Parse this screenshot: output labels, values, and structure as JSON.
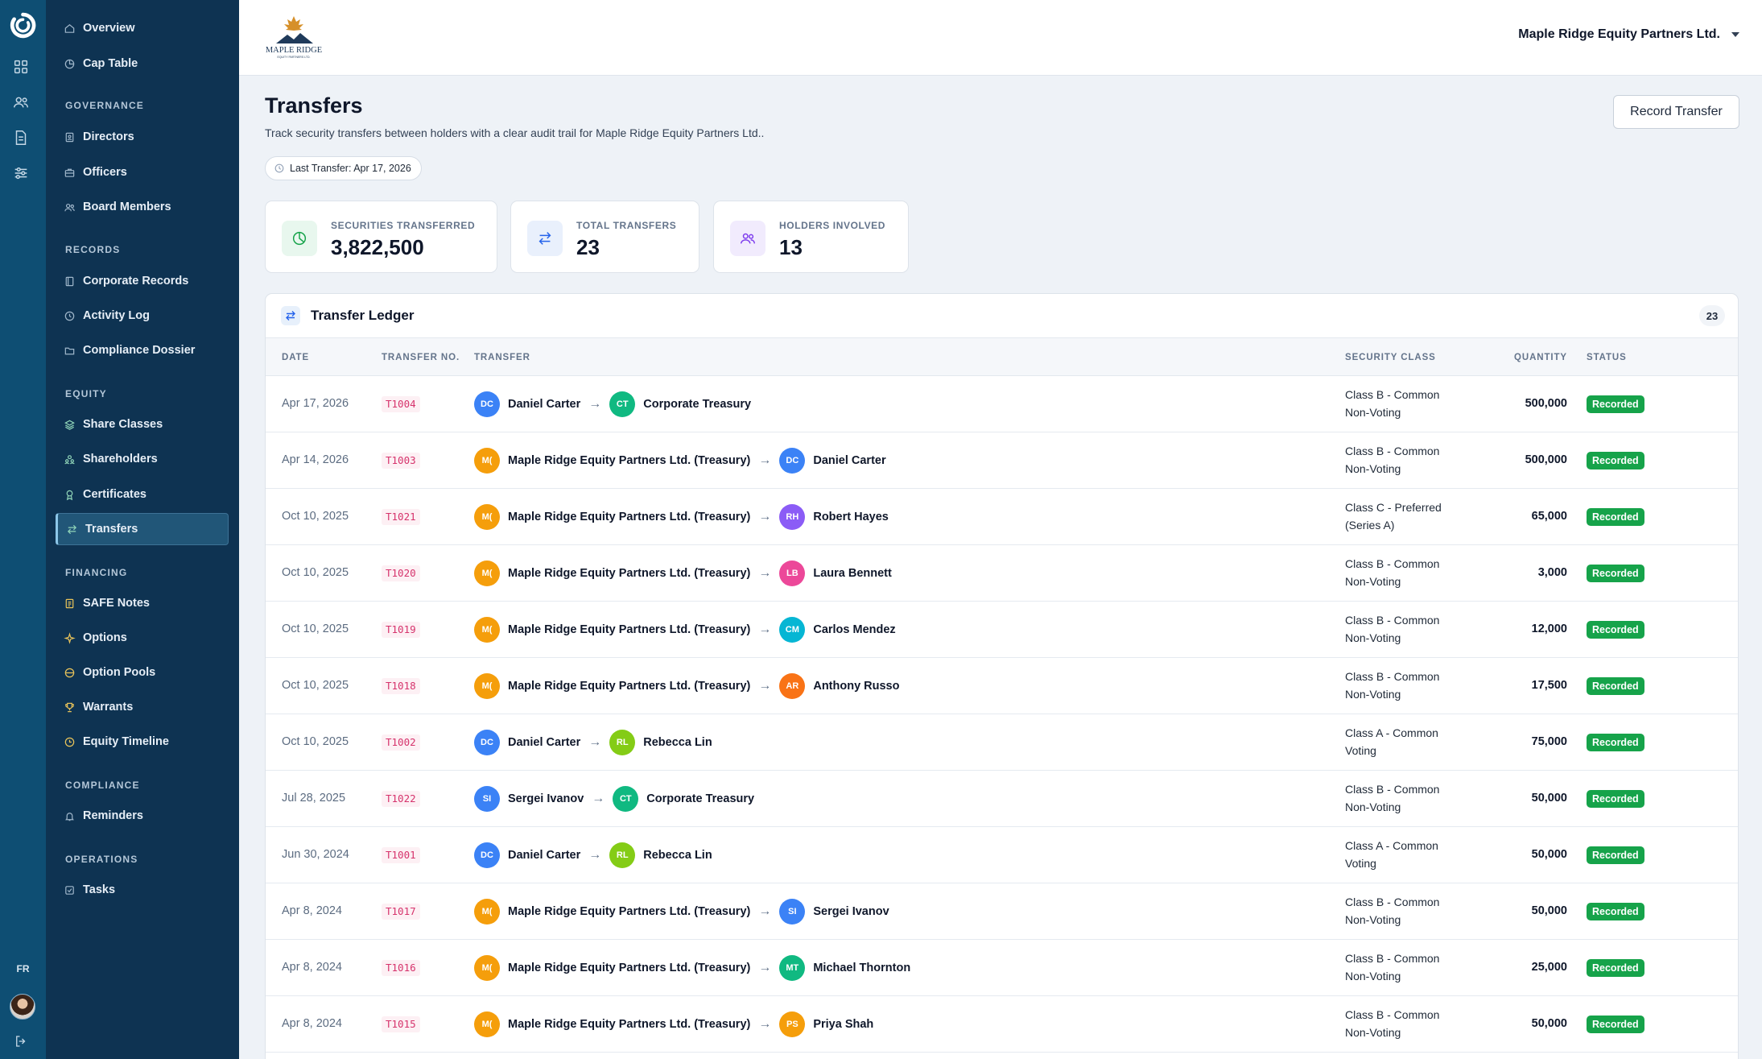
{
  "rail": {
    "icons": [
      "grid-icon",
      "users-icon",
      "document-icon",
      "sliders-icon"
    ],
    "lang": "FR"
  },
  "sidebar": {
    "top_items": [
      {
        "label": "Overview",
        "icon": "home-icon"
      },
      {
        "label": "Cap Table",
        "icon": "pie-chart-icon"
      }
    ],
    "sections": [
      {
        "title": "GOVERNANCE",
        "items": [
          {
            "label": "Directors",
            "icon": "id-badge-icon"
          },
          {
            "label": "Officers",
            "icon": "briefcase-icon"
          },
          {
            "label": "Board Members",
            "icon": "users-icon"
          }
        ]
      },
      {
        "title": "RECORDS",
        "items": [
          {
            "label": "Corporate Records",
            "icon": "book-icon"
          },
          {
            "label": "Activity Log",
            "icon": "clock-icon"
          },
          {
            "label": "Compliance Dossier",
            "icon": "folder-icon"
          }
        ]
      },
      {
        "title": "EQUITY",
        "items": [
          {
            "label": "Share Classes",
            "icon": "layers-icon"
          },
          {
            "label": "Shareholders",
            "icon": "user-group-icon"
          },
          {
            "label": "Certificates",
            "icon": "award-icon"
          },
          {
            "label": "Transfers",
            "icon": "transfer-icon"
          }
        ]
      },
      {
        "title": "FINANCING",
        "items": [
          {
            "label": "SAFE Notes",
            "icon": "note-icon"
          },
          {
            "label": "Options",
            "icon": "sparkle-icon"
          },
          {
            "label": "Option Pools",
            "icon": "pool-icon"
          },
          {
            "label": "Warrants",
            "icon": "trophy-icon"
          },
          {
            "label": "Equity Timeline",
            "icon": "timeline-icon"
          }
        ]
      },
      {
        "title": "COMPLIANCE",
        "items": [
          {
            "label": "Reminders",
            "icon": "bell-icon"
          }
        ]
      },
      {
        "title": "OPERATIONS",
        "items": [
          {
            "label": "Tasks",
            "icon": "checklist-icon"
          }
        ]
      }
    ],
    "active": "Transfers"
  },
  "header": {
    "logo_text": "MAPLE RIDGE",
    "logo_tagline": "EQUITY PARTNERS LTD.",
    "org_name": "Maple Ridge Equity Partners Ltd."
  },
  "page": {
    "title": "Transfers",
    "subtitle": "Track security transfers between holders with a clear audit trail for Maple Ridge Equity Partners Ltd..",
    "last_transfer": "Last Transfer: Apr 17, 2026",
    "record_button": "Record Transfer"
  },
  "stats": [
    {
      "label": "SECURITIES TRANSFERRED",
      "value": "3,822,500",
      "icon": "pie-chart-icon",
      "color": "#16a34a",
      "bg": "#e8f7ee"
    },
    {
      "label": "TOTAL TRANSFERS",
      "value": "23",
      "icon": "transfer-icon",
      "color": "#2563eb",
      "bg": "#e9f0fc"
    },
    {
      "label": "HOLDERS INVOLVED",
      "value": "13",
      "icon": "users-icon",
      "color": "#7c3aed",
      "bg": "#f1ebfd"
    }
  ],
  "ledger": {
    "title": "Transfer Ledger",
    "count": "23",
    "columns": [
      "DATE",
      "TRANSFER NO.",
      "TRANSFER",
      "SECURITY CLASS",
      "QUANTITY",
      "STATUS"
    ],
    "rows": [
      {
        "date": "Apr 17, 2026",
        "no": "T1004",
        "from": {
          "name": "Daniel Carter",
          "initials": "DC",
          "color": "#3b82f6"
        },
        "to": {
          "name": "Corporate Treasury",
          "initials": "CT",
          "color": "#10b981"
        },
        "class_line1": "Class B - Common",
        "class_line2": "Non-Voting",
        "qty": "500,000",
        "status": "Recorded"
      },
      {
        "date": "Apr 14, 2026",
        "no": "T1003",
        "from": {
          "name": "Maple Ridge Equity Partners Ltd. (Treasury)",
          "initials": "M(",
          "color": "#f59e0b"
        },
        "to": {
          "name": "Daniel Carter",
          "initials": "DC",
          "color": "#3b82f6"
        },
        "class_line1": "Class B - Common",
        "class_line2": "Non-Voting",
        "qty": "500,000",
        "status": "Recorded"
      },
      {
        "date": "Oct 10, 2025",
        "no": "T1021",
        "from": {
          "name": "Maple Ridge Equity Partners Ltd. (Treasury)",
          "initials": "M(",
          "color": "#f59e0b"
        },
        "to": {
          "name": "Robert Hayes",
          "initials": "RH",
          "color": "#8b5cf6"
        },
        "class_line1": "Class C - Preferred",
        "class_line2": "(Series A)",
        "qty": "65,000",
        "status": "Recorded"
      },
      {
        "date": "Oct 10, 2025",
        "no": "T1020",
        "from": {
          "name": "Maple Ridge Equity Partners Ltd. (Treasury)",
          "initials": "M(",
          "color": "#f59e0b"
        },
        "to": {
          "name": "Laura Bennett",
          "initials": "LB",
          "color": "#ec4899"
        },
        "class_line1": "Class B - Common",
        "class_line2": "Non-Voting",
        "qty": "3,000",
        "status": "Recorded"
      },
      {
        "date": "Oct 10, 2025",
        "no": "T1019",
        "from": {
          "name": "Maple Ridge Equity Partners Ltd. (Treasury)",
          "initials": "M(",
          "color": "#f59e0b"
        },
        "to": {
          "name": "Carlos Mendez",
          "initials": "CM",
          "color": "#06b6d4"
        },
        "class_line1": "Class B - Common",
        "class_line2": "Non-Voting",
        "qty": "12,000",
        "status": "Recorded"
      },
      {
        "date": "Oct 10, 2025",
        "no": "T1018",
        "from": {
          "name": "Maple Ridge Equity Partners Ltd. (Treasury)",
          "initials": "M(",
          "color": "#f59e0b"
        },
        "to": {
          "name": "Anthony Russo",
          "initials": "AR",
          "color": "#f97316"
        },
        "class_line1": "Class B - Common",
        "class_line2": "Non-Voting",
        "qty": "17,500",
        "status": "Recorded"
      },
      {
        "date": "Oct 10, 2025",
        "no": "T1002",
        "from": {
          "name": "Daniel Carter",
          "initials": "DC",
          "color": "#3b82f6"
        },
        "to": {
          "name": "Rebecca Lin",
          "initials": "RL",
          "color": "#84cc16"
        },
        "class_line1": "Class A - Common",
        "class_line2": "Voting",
        "qty": "75,000",
        "status": "Recorded"
      },
      {
        "date": "Jul 28, 2025",
        "no": "T1022",
        "from": {
          "name": "Sergei Ivanov",
          "initials": "SI",
          "color": "#3b82f6"
        },
        "to": {
          "name": "Corporate Treasury",
          "initials": "CT",
          "color": "#10b981"
        },
        "class_line1": "Class B - Common",
        "class_line2": "Non-Voting",
        "qty": "50,000",
        "status": "Recorded"
      },
      {
        "date": "Jun 30, 2024",
        "no": "T1001",
        "from": {
          "name": "Daniel Carter",
          "initials": "DC",
          "color": "#3b82f6"
        },
        "to": {
          "name": "Rebecca Lin",
          "initials": "RL",
          "color": "#84cc16"
        },
        "class_line1": "Class A - Common",
        "class_line2": "Voting",
        "qty": "50,000",
        "status": "Recorded"
      },
      {
        "date": "Apr 8, 2024",
        "no": "T1017",
        "from": {
          "name": "Maple Ridge Equity Partners Ltd. (Treasury)",
          "initials": "M(",
          "color": "#f59e0b"
        },
        "to": {
          "name": "Sergei Ivanov",
          "initials": "SI",
          "color": "#3b82f6"
        },
        "class_line1": "Class B - Common",
        "class_line2": "Non-Voting",
        "qty": "50,000",
        "status": "Recorded"
      },
      {
        "date": "Apr 8, 2024",
        "no": "T1016",
        "from": {
          "name": "Maple Ridge Equity Partners Ltd. (Treasury)",
          "initials": "M(",
          "color": "#f59e0b"
        },
        "to": {
          "name": "Michael Thornton",
          "initials": "MT",
          "color": "#10b981"
        },
        "class_line1": "Class B - Common",
        "class_line2": "Non-Voting",
        "qty": "25,000",
        "status": "Recorded"
      },
      {
        "date": "Apr 8, 2024",
        "no": "T1015",
        "from": {
          "name": "Maple Ridge Equity Partners Ltd. (Treasury)",
          "initials": "M(",
          "color": "#f59e0b"
        },
        "to": {
          "name": "Priya Shah",
          "initials": "PS",
          "color": "#f59e0b"
        },
        "class_line1": "Class B - Common",
        "class_line2": "Non-Voting",
        "qty": "50,000",
        "status": "Recorded"
      }
    ]
  }
}
